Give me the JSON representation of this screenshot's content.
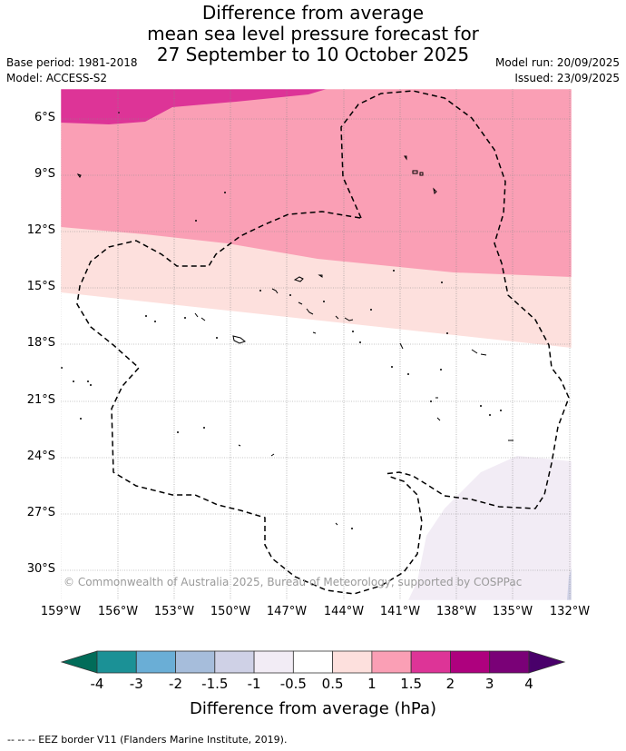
{
  "title": {
    "line1": "Difference from average",
    "line2": "mean sea level pressure forecast for",
    "line3": "27 September to 10 October 2025"
  },
  "meta": {
    "base_period": "Base period: 1981-2018",
    "model": "Model: ACCESS-S2",
    "model_run": "Model run: 20/09/2025",
    "issued": "Issued: 23/09/2025"
  },
  "map": {
    "lat_labels": [
      "6°S",
      "9°S",
      "12°S",
      "15°S",
      "18°S",
      "21°S",
      "24°S",
      "27°S",
      "30°S"
    ],
    "lon_labels": [
      "159°W",
      "156°W",
      "153°W",
      "150°W",
      "147°W",
      "144°W",
      "141°W",
      "138°W",
      "135°W",
      "132°W"
    ],
    "copyright": "© Commonwealth of Australia 2025, Bureau of Meteorology, supported by COSPPac"
  },
  "colorbar": {
    "labels": [
      "-4",
      "-3",
      "-2",
      "-1.5",
      "-1",
      "-0.5",
      "0.5",
      "1",
      "1.5",
      "2",
      "3",
      "4"
    ],
    "colors": [
      "#1b9196",
      "#6aaed6",
      "#a6bddb",
      "#cfd1e6",
      "#f2ecf5",
      "#ffffff",
      "#fde0dd",
      "#fa9fb5",
      "#dd3497",
      "#ae017e",
      "#7a0177"
    ],
    "low_extend_color": "#016c59",
    "high_extend_color": "#49006a",
    "title": "Difference from average (hPa)"
  },
  "footnote": "--  --  -- EEZ border V11 (Flanders Marine Institute, 2019)."
}
